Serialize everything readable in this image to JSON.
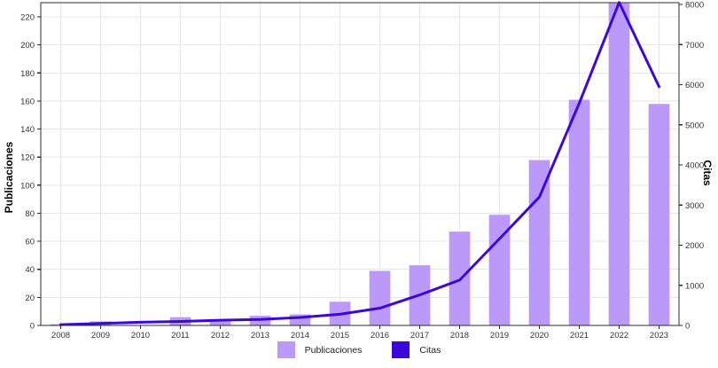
{
  "chart_data": {
    "type": "bar",
    "title": "",
    "categories": [
      "2008",
      "2009",
      "2010",
      "2011",
      "2012",
      "2013",
      "2014",
      "2015",
      "2016",
      "2017",
      "2018",
      "2019",
      "2020",
      "2021",
      "2022",
      "2023"
    ],
    "series": [
      {
        "name": "Publicaciones",
        "kind": "bar",
        "axis": "left",
        "color": "#bb99f8",
        "values": [
          1,
          3,
          0,
          6,
          3,
          7,
          8,
          17,
          39,
          43,
          67,
          79,
          118,
          161,
          230,
          158
        ]
      },
      {
        "name": "Citas",
        "kind": "line",
        "axis": "right",
        "color": "#3a08dc",
        "values": [
          20,
          50,
          80,
          100,
          130,
          150,
          200,
          280,
          430,
          760,
          1130,
          2160,
          3200,
          5540,
          8050,
          5950
        ]
      }
    ],
    "left_axis": {
      "label": "Publicaciones",
      "min": 0,
      "max": 220,
      "step": 20
    },
    "right_axis": {
      "label": "Citas",
      "min": 0,
      "max": 8000,
      "step": 1000
    },
    "x_axis": {
      "label": ""
    },
    "legend": {
      "position": "bottom",
      "items": [
        "Publicaciones",
        "Citas"
      ]
    },
    "grid": true,
    "colors": {
      "grid": "#e6e6e6",
      "axis": "#2b2b2b",
      "tick_text": "#333333",
      "background": "#ffffff"
    }
  }
}
